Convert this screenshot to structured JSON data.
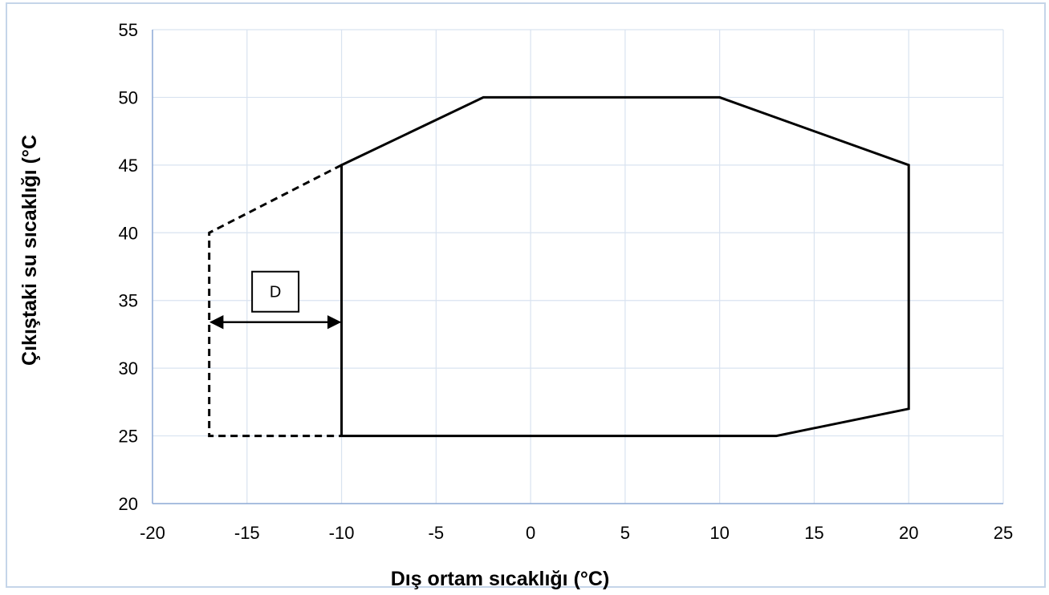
{
  "chart_data": {
    "type": "line",
    "xlabel": "Dış ortam sıcaklığı (°C)",
    "ylabel": "Çıkıştaki su sıcaklığı (°C",
    "xlim": [
      -20,
      25
    ],
    "ylim": [
      20,
      55
    ],
    "xticks": [
      -20,
      -15,
      -10,
      -5,
      0,
      5,
      10,
      15,
      20,
      25
    ],
    "yticks": [
      20,
      25,
      30,
      35,
      40,
      45,
      50,
      55
    ],
    "grid": true,
    "series": [
      {
        "style": "solid",
        "points": [
          [
            -10,
            25
          ],
          [
            -10,
            45
          ],
          [
            -2.5,
            50
          ],
          [
            10,
            50
          ],
          [
            20,
            45
          ],
          [
            20,
            27
          ],
          [
            13,
            25
          ],
          [
            -10,
            25
          ]
        ]
      },
      {
        "style": "dashed",
        "points": [
          [
            -10,
            45
          ],
          [
            -17,
            40
          ],
          [
            -17,
            25
          ],
          [
            -10,
            25
          ]
        ]
      }
    ],
    "annotations": [
      {
        "type": "double-arrow",
        "from": [
          -17,
          33.4
        ],
        "to": [
          -10,
          33.4
        ],
        "label": "D"
      }
    ],
    "colors": {
      "line": "#000000",
      "grid": "#d9e3f0",
      "border": "#c5d5e9",
      "axis": "#8eaad6"
    }
  }
}
